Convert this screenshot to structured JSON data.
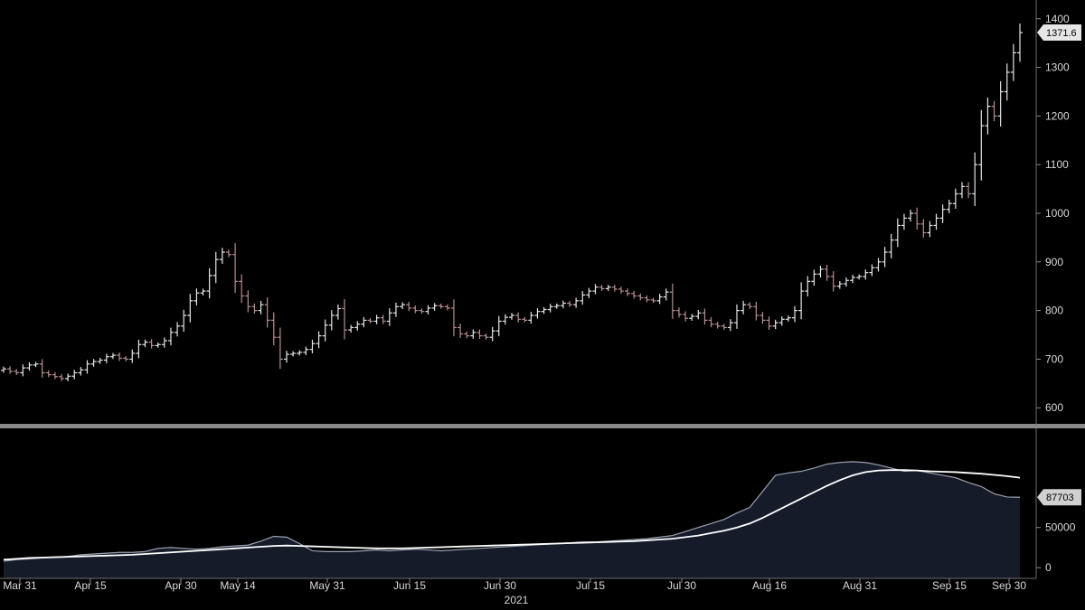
{
  "chart_data": [
    {
      "type": "ohlc",
      "panel": "price",
      "x_label": "2021",
      "x_ticks": [
        "Mar 31",
        "Apr 15",
        "Apr 30",
        "May 14",
        "May 31",
        "Jun 15",
        "Jun 30",
        "Jul 15",
        "Jul 30",
        "Aug 16",
        "Aug 31",
        "Sep 15",
        "Sep 30"
      ],
      "y_ticks": [
        600,
        700,
        800,
        900,
        1000,
        1100,
        1200,
        1300,
        1400
      ],
      "ylim": [
        580,
        1420
      ],
      "last_value_label": "1371.6",
      "colors": {
        "background": "#000000",
        "up_bar": "#e6e6e6",
        "down_bar": "#b98f8f",
        "grid_divider": "#8a8a8a"
      },
      "series": [
        {
          "name": "",
          "close": [
            680,
            675,
            672,
            682,
            688,
            690,
            672,
            668,
            664,
            660,
            665,
            672,
            678,
            690,
            695,
            698,
            705,
            708,
            702,
            700,
            712,
            730,
            735,
            728,
            730,
            738,
            755,
            768,
            790,
            820,
            836,
            840,
            872,
            905,
            920,
            915,
            860,
            830,
            808,
            800,
            812,
            780,
            745,
            700,
            710,
            712,
            714,
            720,
            732,
            748,
            770,
            790,
            804,
            760,
            765,
            772,
            780,
            778,
            785,
            778,
            795,
            808,
            812,
            805,
            800,
            798,
            805,
            810,
            808,
            805,
            765,
            752,
            748,
            755,
            748,
            745,
            758,
            778,
            786,
            790,
            782,
            780,
            790,
            798,
            802,
            808,
            810,
            815,
            812,
            820,
            832,
            840,
            848,
            845,
            848,
            844,
            840,
            835,
            830,
            826,
            822,
            820,
            828,
            838,
            800,
            792,
            784,
            788,
            795,
            780,
            772,
            768,
            765,
            775,
            800,
            812,
            808,
            790,
            780,
            768,
            775,
            782,
            785,
            800,
            840,
            860,
            875,
            885,
            870,
            850,
            855,
            862,
            868,
            870,
            878,
            888,
            900,
            920,
            945,
            975,
            990,
            1000,
            978,
            960,
            975,
            990,
            1008,
            1020,
            1040,
            1055,
            1040,
            1100,
            1180,
            1220,
            1200,
            1250,
            1290,
            1330,
            1371.6
          ]
        }
      ]
    },
    {
      "type": "area",
      "panel": "volume",
      "y_ticks": [
        0,
        50000
      ],
      "ylim": [
        -10000,
        160000
      ],
      "last_value_label": "87703",
      "colors": {
        "area_fill": "#161b2a",
        "area_line": "#9aa0ad",
        "average_line": "#ffffff"
      },
      "series": [
        {
          "name": "",
          "values": [
            8000,
            10000,
            11000,
            12000,
            13000,
            14000,
            16000,
            17000,
            18000,
            19000,
            19000,
            20000,
            24000,
            25000,
            24000,
            23000,
            24000,
            26000,
            27000,
            28000,
            33000,
            39000,
            38000,
            30000,
            21000,
            20000,
            20000,
            20000,
            21000,
            22000,
            21000,
            22000,
            23000,
            22000,
            21000,
            22000,
            23000,
            24000,
            25000,
            26000,
            27000,
            28000,
            29000,
            30000,
            31000,
            32000,
            32000,
            33000,
            34000,
            35000,
            36000,
            38000,
            40000,
            45000,
            50000,
            55000,
            60000,
            68000,
            75000,
            95000,
            115000,
            118000,
            120000,
            124000,
            129000,
            131000,
            132000,
            131000,
            128000,
            124000,
            120000,
            121000,
            118000,
            115000,
            112000,
            106000,
            101000,
            92000,
            88000,
            87703
          ]
        },
        {
          "name": "",
          "values": [
            10000,
            11000,
            12000,
            12500,
            13000,
            13500,
            14000,
            14500,
            15000,
            15500,
            16000,
            17000,
            18000,
            19000,
            20000,
            21000,
            22000,
            23000,
            24000,
            25000,
            26000,
            27000,
            27500,
            27000,
            26500,
            26000,
            25500,
            25000,
            24500,
            24000,
            24000,
            24000,
            24500,
            25000,
            25500,
            26000,
            26500,
            27000,
            27500,
            28000,
            28500,
            29000,
            29500,
            30000,
            30500,
            31000,
            31500,
            32000,
            32500,
            33000,
            34000,
            35000,
            36000,
            38000,
            40000,
            43000,
            46000,
            50000,
            55000,
            62000,
            70000,
            78000,
            86000,
            94000,
            102000,
            109000,
            115000,
            119000,
            121000,
            121500,
            121500,
            121000,
            120000,
            119500,
            119000,
            118000,
            117000,
            115500,
            114000,
            112000
          ]
        }
      ]
    }
  ]
}
